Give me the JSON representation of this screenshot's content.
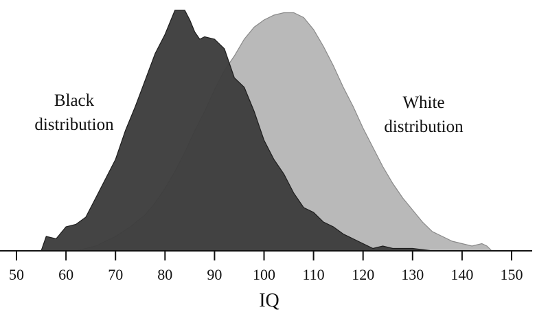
{
  "chart_data": {
    "type": "area",
    "title": "",
    "xlabel": "IQ",
    "ylabel": "",
    "xlim": [
      47,
      155
    ],
    "ylim": [
      0,
      1
    ],
    "xticks": [
      "50",
      "60",
      "70",
      "80",
      "90",
      "100",
      "110",
      "120",
      "130",
      "140",
      "150"
    ],
    "grid": false,
    "legend": "none",
    "series": [
      {
        "name": "White distribution",
        "label_lines": [
          "White",
          "distribution"
        ],
        "color": "#b9b9b9",
        "x": [
          62,
          66,
          70,
          73,
          76,
          78,
          80,
          82,
          84,
          86,
          88,
          90,
          92,
          94,
          96,
          98,
          100,
          102,
          104,
          106,
          108,
          110,
          112,
          114,
          116,
          118,
          120,
          122,
          124,
          126,
          128,
          130,
          132,
          134,
          136,
          138,
          140,
          142,
          144,
          145,
          146
        ],
        "y": [
          0.0,
          0.02,
          0.06,
          0.1,
          0.15,
          0.2,
          0.26,
          0.33,
          0.41,
          0.5,
          0.58,
          0.67,
          0.75,
          0.81,
          0.88,
          0.93,
          0.96,
          0.98,
          0.99,
          0.99,
          0.97,
          0.92,
          0.85,
          0.77,
          0.68,
          0.6,
          0.51,
          0.43,
          0.35,
          0.28,
          0.22,
          0.17,
          0.12,
          0.08,
          0.06,
          0.04,
          0.03,
          0.02,
          0.03,
          0.02,
          0.0
        ]
      },
      {
        "name": "Black distribution",
        "label_lines": [
          "Black",
          "distribution"
        ],
        "color": "#3e3e3e",
        "x": [
          55,
          56,
          58,
          60,
          62,
          64,
          66,
          68,
          70,
          72,
          74,
          76,
          78,
          80,
          81,
          82,
          83,
          84,
          85,
          86,
          87,
          88,
          90,
          92,
          94,
          96,
          98,
          100,
          102,
          104,
          106,
          108,
          110,
          112,
          114,
          116,
          118,
          120,
          122,
          124,
          126,
          130,
          134
        ],
        "y": [
          0.0,
          0.06,
          0.05,
          0.1,
          0.11,
          0.14,
          0.22,
          0.3,
          0.38,
          0.5,
          0.6,
          0.71,
          0.82,
          0.9,
          0.95,
          1.0,
          1.0,
          1.0,
          0.96,
          0.91,
          0.88,
          0.89,
          0.88,
          0.84,
          0.72,
          0.68,
          0.58,
          0.46,
          0.38,
          0.32,
          0.24,
          0.18,
          0.16,
          0.12,
          0.1,
          0.07,
          0.05,
          0.03,
          0.01,
          0.02,
          0.01,
          0.01,
          0.0
        ]
      }
    ]
  }
}
